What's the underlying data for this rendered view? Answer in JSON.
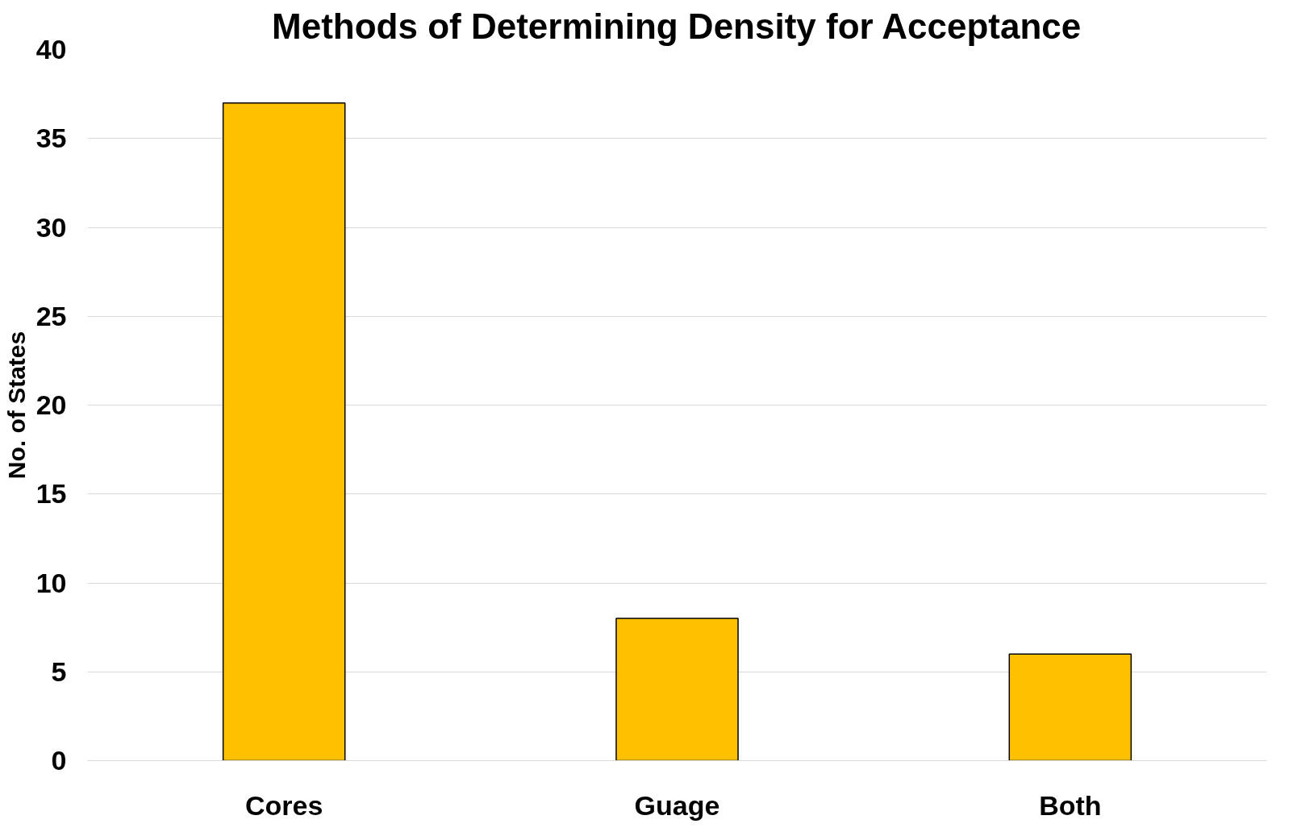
{
  "chart_data": {
    "type": "bar",
    "title": "Methods of Determining Density for Acceptance",
    "ylabel": "No. of States",
    "categories": [
      "Cores",
      "Guage",
      "Both"
    ],
    "values": [
      37,
      8,
      6
    ],
    "color": "#ffc000",
    "ylim": [
      0,
      40
    ],
    "yticks": [
      0,
      5,
      10,
      15,
      20,
      25,
      30,
      35,
      40
    ],
    "grid": "y"
  }
}
